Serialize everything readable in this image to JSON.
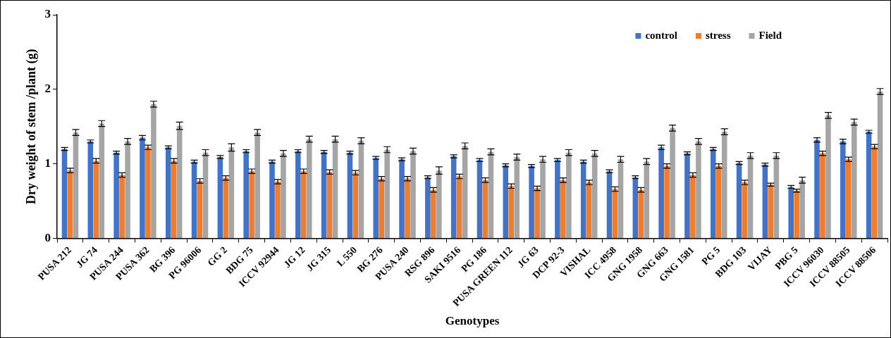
{
  "chart_data": {
    "type": "bar",
    "xlabel": "Genotypes",
    "ylabel": "Dry weight of stem /plant (g)",
    "categories": [
      "PUSA 212",
      "JG 74",
      "PUSA 244",
      "PUSA 362",
      "BG 396",
      "PG 96006",
      "GG 2",
      "BDG 75",
      "ICCV 92944",
      "JG 12",
      "JG 315",
      "L 550",
      "BG 276",
      "PUSA 240",
      "RSG 896",
      "SAKI 9516",
      "PG 186",
      "PUSA GREEN 112",
      "JG 63",
      "DCP 92-3",
      "VISHAL",
      "ICC 4958",
      "GNG 1958",
      "GNG 663",
      "GNG 1581",
      "PG 5",
      "BDG 103",
      "VIJAY",
      "PBG 5",
      "ICCV 96030",
      "ICCV 88505",
      "ICCV 88506"
    ],
    "series": [
      {
        "name": "control",
        "color": "#4472c4",
        "values": [
          1.2,
          1.3,
          1.15,
          1.35,
          1.22,
          1.03,
          1.09,
          1.17,
          1.03,
          1.17,
          1.16,
          1.15,
          1.08,
          1.06,
          0.82,
          1.1,
          1.05,
          0.98,
          0.97,
          1.05,
          1.03,
          0.9,
          0.82,
          1.22,
          1.14,
          1.2,
          1.01,
          0.99,
          0.69,
          1.32,
          1.3,
          1.43
        ],
        "errors": [
          0.02,
          0.02,
          0.02,
          0.03,
          0.02,
          0.02,
          0.02,
          0.02,
          0.02,
          0.02,
          0.02,
          0.02,
          0.02,
          0.02,
          0.02,
          0.02,
          0.02,
          0.02,
          0.02,
          0.02,
          0.02,
          0.02,
          0.02,
          0.03,
          0.02,
          0.02,
          0.02,
          0.02,
          0.02,
          0.03,
          0.03,
          0.02
        ]
      },
      {
        "name": "stress",
        "color": "#ed7d31",
        "values": [
          0.91,
          1.04,
          0.85,
          1.22,
          1.04,
          0.77,
          0.81,
          0.9,
          0.76,
          0.9,
          0.89,
          0.88,
          0.8,
          0.8,
          0.65,
          0.83,
          0.78,
          0.7,
          0.67,
          0.78,
          0.75,
          0.66,
          0.65,
          0.97,
          0.85,
          0.97,
          0.75,
          0.72,
          0.64,
          1.14,
          1.06,
          1.23
        ],
        "errors": [
          0.03,
          0.03,
          0.03,
          0.03,
          0.03,
          0.03,
          0.03,
          0.03,
          0.03,
          0.03,
          0.03,
          0.03,
          0.03,
          0.03,
          0.03,
          0.03,
          0.03,
          0.03,
          0.03,
          0.03,
          0.03,
          0.03,
          0.03,
          0.03,
          0.03,
          0.03,
          0.03,
          0.02,
          0.02,
          0.03,
          0.03,
          0.03
        ]
      },
      {
        "name": "Field",
        "color": "#a5a5a5",
        "values": [
          1.42,
          1.54,
          1.3,
          1.8,
          1.51,
          1.15,
          1.22,
          1.42,
          1.14,
          1.33,
          1.33,
          1.31,
          1.19,
          1.17,
          0.91,
          1.24,
          1.16,
          1.09,
          1.06,
          1.15,
          1.14,
          1.06,
          1.03,
          1.48,
          1.3,
          1.43,
          1.11,
          1.11,
          0.78,
          1.65,
          1.56,
          1.97
        ],
        "errors": [
          0.04,
          0.04,
          0.04,
          0.04,
          0.05,
          0.04,
          0.05,
          0.04,
          0.04,
          0.04,
          0.04,
          0.04,
          0.04,
          0.04,
          0.05,
          0.04,
          0.04,
          0.04,
          0.04,
          0.04,
          0.04,
          0.04,
          0.04,
          0.04,
          0.04,
          0.04,
          0.04,
          0.04,
          0.04,
          0.04,
          0.04,
          0.04
        ]
      }
    ],
    "ylim": [
      0,
      3
    ],
    "yticks": [
      0,
      1,
      2,
      3
    ],
    "grid": false,
    "legend": "top right"
  }
}
